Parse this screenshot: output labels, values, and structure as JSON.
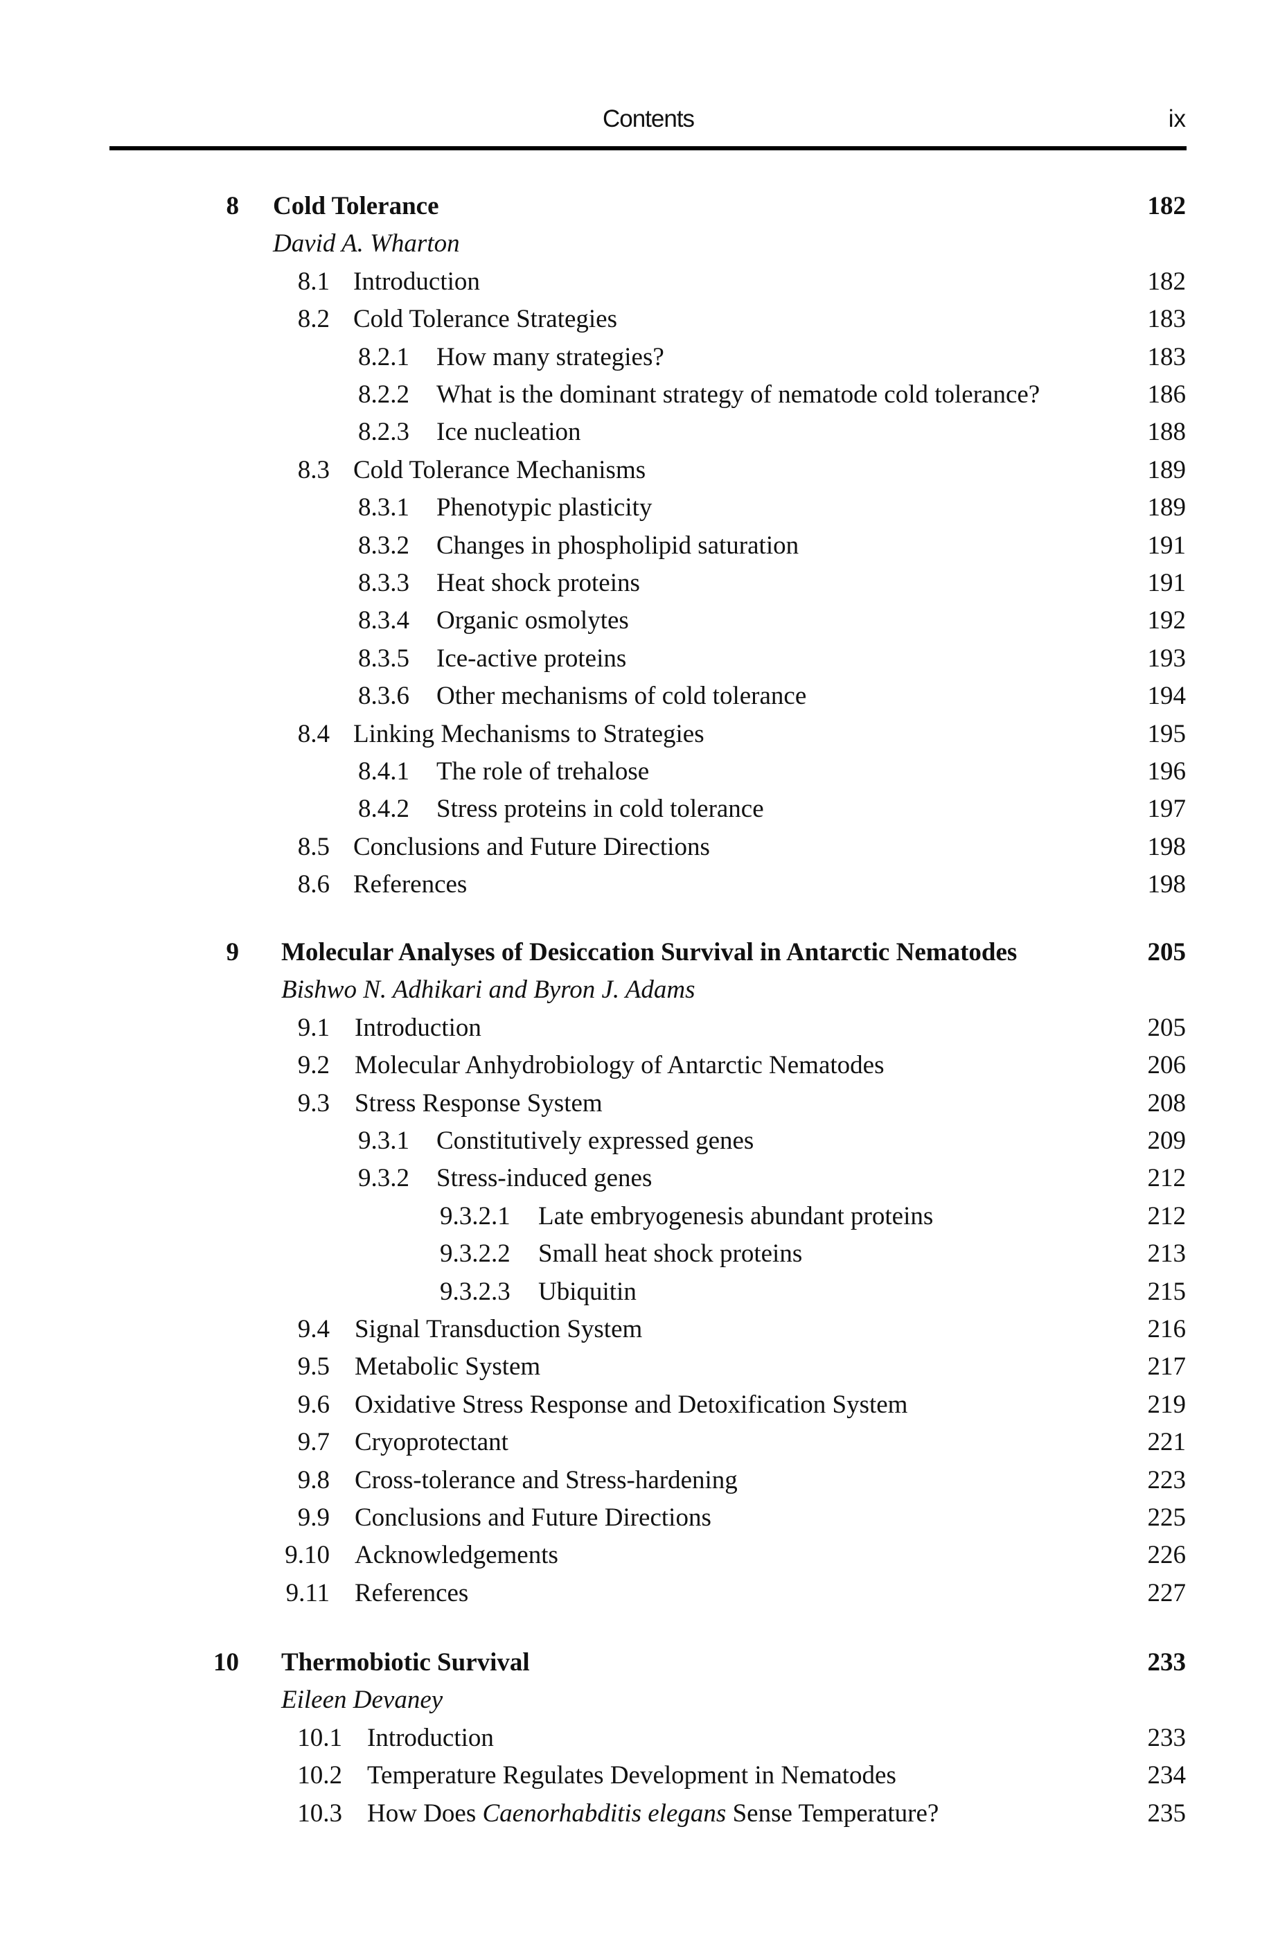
{
  "header": {
    "title": "Contents",
    "page": "ix"
  },
  "chapters": [
    {
      "number": "8",
      "title": "Cold Tolerance",
      "page": "182",
      "author": "David A. Wharton",
      "entries": [
        {
          "level": 1,
          "number": "8.1",
          "title": "Introduction",
          "page": "182"
        },
        {
          "level": 1,
          "number": "8.2",
          "title": "Cold Tolerance Strategies",
          "page": "183"
        },
        {
          "level": 2,
          "number": "8.2.1",
          "title": "How many strategies?",
          "page": "183"
        },
        {
          "level": 2,
          "number": "8.2.2",
          "title": "What is the dominant strategy of nematode cold tolerance?",
          "page": "186"
        },
        {
          "level": 2,
          "number": "8.2.3",
          "title": "Ice nucleation",
          "page": "188"
        },
        {
          "level": 1,
          "number": "8.3",
          "title": "Cold Tolerance Mechanisms",
          "page": "189"
        },
        {
          "level": 2,
          "number": "8.3.1",
          "title": "Phenotypic plasticity",
          "page": "189"
        },
        {
          "level": 2,
          "number": "8.3.2",
          "title": "Changes in phospholipid saturation",
          "page": "191"
        },
        {
          "level": 2,
          "number": "8.3.3",
          "title": "Heat shock proteins",
          "page": "191"
        },
        {
          "level": 2,
          "number": "8.3.4",
          "title": "Organic osmolytes",
          "page": "192"
        },
        {
          "level": 2,
          "number": "8.3.5",
          "title": "Ice-active proteins",
          "page": "193"
        },
        {
          "level": 2,
          "number": "8.3.6",
          "title": "Other mechanisms of cold tolerance",
          "page": "194"
        },
        {
          "level": 1,
          "number": "8.4",
          "title": "Linking Mechanisms to Strategies",
          "page": "195"
        },
        {
          "level": 2,
          "number": "8.4.1",
          "title": "The role of trehalose",
          "page": "196"
        },
        {
          "level": 2,
          "number": "8.4.2",
          "title": "Stress proteins in cold tolerance",
          "page": "197"
        },
        {
          "level": 1,
          "number": "8.5",
          "title": "Conclusions and Future Directions",
          "page": "198"
        },
        {
          "level": 1,
          "number": "8.6",
          "title": "References",
          "page": "198"
        }
      ]
    },
    {
      "number": "9",
      "title": "Molecular Analyses of Desiccation Survival in Antarctic Nematodes",
      "page": "205",
      "author": "Bishwo N. Adhikari and Byron J. Adams",
      "entries": [
        {
          "level": 1,
          "number": "9.1",
          "title": "Introduction",
          "page": "205"
        },
        {
          "level": 1,
          "number": "9.2",
          "title": "Molecular Anhydrobiology of Antarctic Nematodes",
          "page": "206"
        },
        {
          "level": 1,
          "number": "9.3",
          "title": "Stress Response System",
          "page": "208"
        },
        {
          "level": 2,
          "number": "9.3.1",
          "title": "Constitutively expressed genes",
          "page": "209"
        },
        {
          "level": 2,
          "number": "9.3.2",
          "title": "Stress-induced genes",
          "page": "212"
        },
        {
          "level": 3,
          "number": "9.3.2.1",
          "title": "Late embryogenesis abundant proteins",
          "page": "212"
        },
        {
          "level": 3,
          "number": "9.3.2.2",
          "title": "Small heat shock proteins",
          "page": "213"
        },
        {
          "level": 3,
          "number": "9.3.2.3",
          "title": "Ubiquitin",
          "page": "215"
        },
        {
          "level": 1,
          "number": "9.4",
          "title": "Signal Transduction System",
          "page": "216"
        },
        {
          "level": 1,
          "number": "9.5",
          "title": "Metabolic System",
          "page": "217"
        },
        {
          "level": 1,
          "number": "9.6",
          "title": "Oxidative Stress Response and Detoxification System",
          "page": "219"
        },
        {
          "level": 1,
          "number": "9.7",
          "title": "Cryoprotectant",
          "page": "221"
        },
        {
          "level": 1,
          "number": "9.8",
          "title": "Cross-tolerance and Stress-hardening",
          "page": "223"
        },
        {
          "level": 1,
          "number": "9.9",
          "title": "Conclusions and Future Directions",
          "page": "225"
        },
        {
          "level": 1,
          "number": "9.10",
          "title": "Acknowledgements",
          "page": "226"
        },
        {
          "level": 1,
          "number": "9.11",
          "title": "References",
          "page": "227"
        }
      ]
    },
    {
      "number": "10",
      "title": "Thermobiotic Survival",
      "page": "233",
      "author": "Eileen Devaney",
      "entries": [
        {
          "level": 1,
          "number": "10.1",
          "title": "Introduction",
          "page": "233"
        },
        {
          "level": 1,
          "number": "10.2",
          "title": "Temperature Regulates Development in Nematodes",
          "page": "234"
        },
        {
          "level": 1,
          "number": "10.3",
          "title": "How Does ",
          "title_italic": "Caenorhabditis elegans",
          "title_after": " Sense Temperature?",
          "page": "235"
        }
      ]
    }
  ]
}
